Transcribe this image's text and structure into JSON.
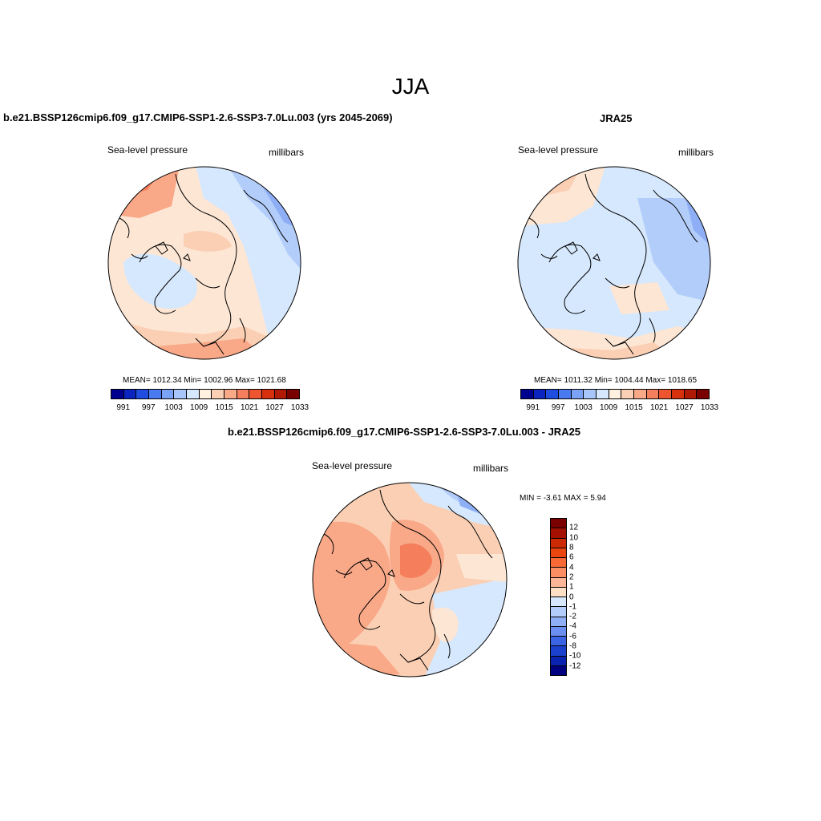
{
  "season": "JJA",
  "panels": {
    "model": {
      "title": "b.e21.BSSP126cmip6.f09_g17.CMIP6-SSP1-2.6-SSP3-7.0Lu.003 (yrs 2045-2069)",
      "variable": "Sea-level pressure",
      "units": "millibars",
      "stats": "MEAN= 1012.34  Min= 1002.96  Max= 1021.68"
    },
    "obs": {
      "title": "JRA25",
      "variable": "Sea-level pressure",
      "units": "millibars",
      "stats": "MEAN= 1011.32  Min= 1004.44  Max= 1018.65"
    },
    "diff": {
      "title": "b.e21.BSSP126cmip6.f09_g17.CMIP6-SSP1-2.6-SSP3-7.0Lu.003 - JRA25",
      "variable": "Sea-level pressure",
      "units": "millibars",
      "stats": "MIN =  -3.61 MAX =   5.94"
    }
  },
  "abs_colorbar": {
    "colors": [
      "#00008f",
      "#0b24bf",
      "#1f4de0",
      "#4a7af0",
      "#7aa3f5",
      "#a8c6fa",
      "#d6e8fd",
      "#fff0e0",
      "#fbcfb3",
      "#f9a888",
      "#f57f5c",
      "#ec5530",
      "#d8300c",
      "#b01a05",
      "#7a0000"
    ],
    "tick_labels": [
      "991",
      "997",
      "1003",
      "1009",
      "1015",
      "1021",
      "1027",
      "1033"
    ]
  },
  "diff_colorbar": {
    "colors": [
      "#7a0000",
      "#a51000",
      "#cc2a05",
      "#e8450f",
      "#f76a35",
      "#fb8f63",
      "#fcb596",
      "#fde0c6",
      "#d6e8fd",
      "#b3cdfa",
      "#8eaff5",
      "#6b8ff0",
      "#3a64e3",
      "#1a40cd",
      "#0a22b0",
      "#000080"
    ],
    "tick_labels": [
      "12",
      "10",
      "8",
      "6",
      "4",
      "2",
      "1",
      "0",
      "-1",
      "-2",
      "-4",
      "-6",
      "-8",
      "-10",
      "-12"
    ]
  },
  "chart_data": [
    {
      "type": "heatmap",
      "title": "b.e21.BSSP126cmip6.f09_g17.CMIP6-SSP1-2.6-SSP3-7.0Lu.003 (yrs 2045-2069)",
      "variable": "Sea-level pressure",
      "units": "millibars",
      "mean": 1012.34,
      "min": 1002.96,
      "max": 1021.68
    },
    {
      "type": "heatmap",
      "title": "JRA25",
      "variable": "Sea-level pressure",
      "units": "millibars",
      "mean": 1011.32,
      "min": 1004.44,
      "max": 1018.65
    },
    {
      "type": "heatmap",
      "title": "b.e21.BSSP126cmip6.f09_g17.CMIP6-SSP1-2.6-SSP3-7.0Lu.003 - JRA25",
      "variable": "Sea-level pressure",
      "units": "millibars",
      "min": -3.61,
      "max": 5.94
    }
  ]
}
